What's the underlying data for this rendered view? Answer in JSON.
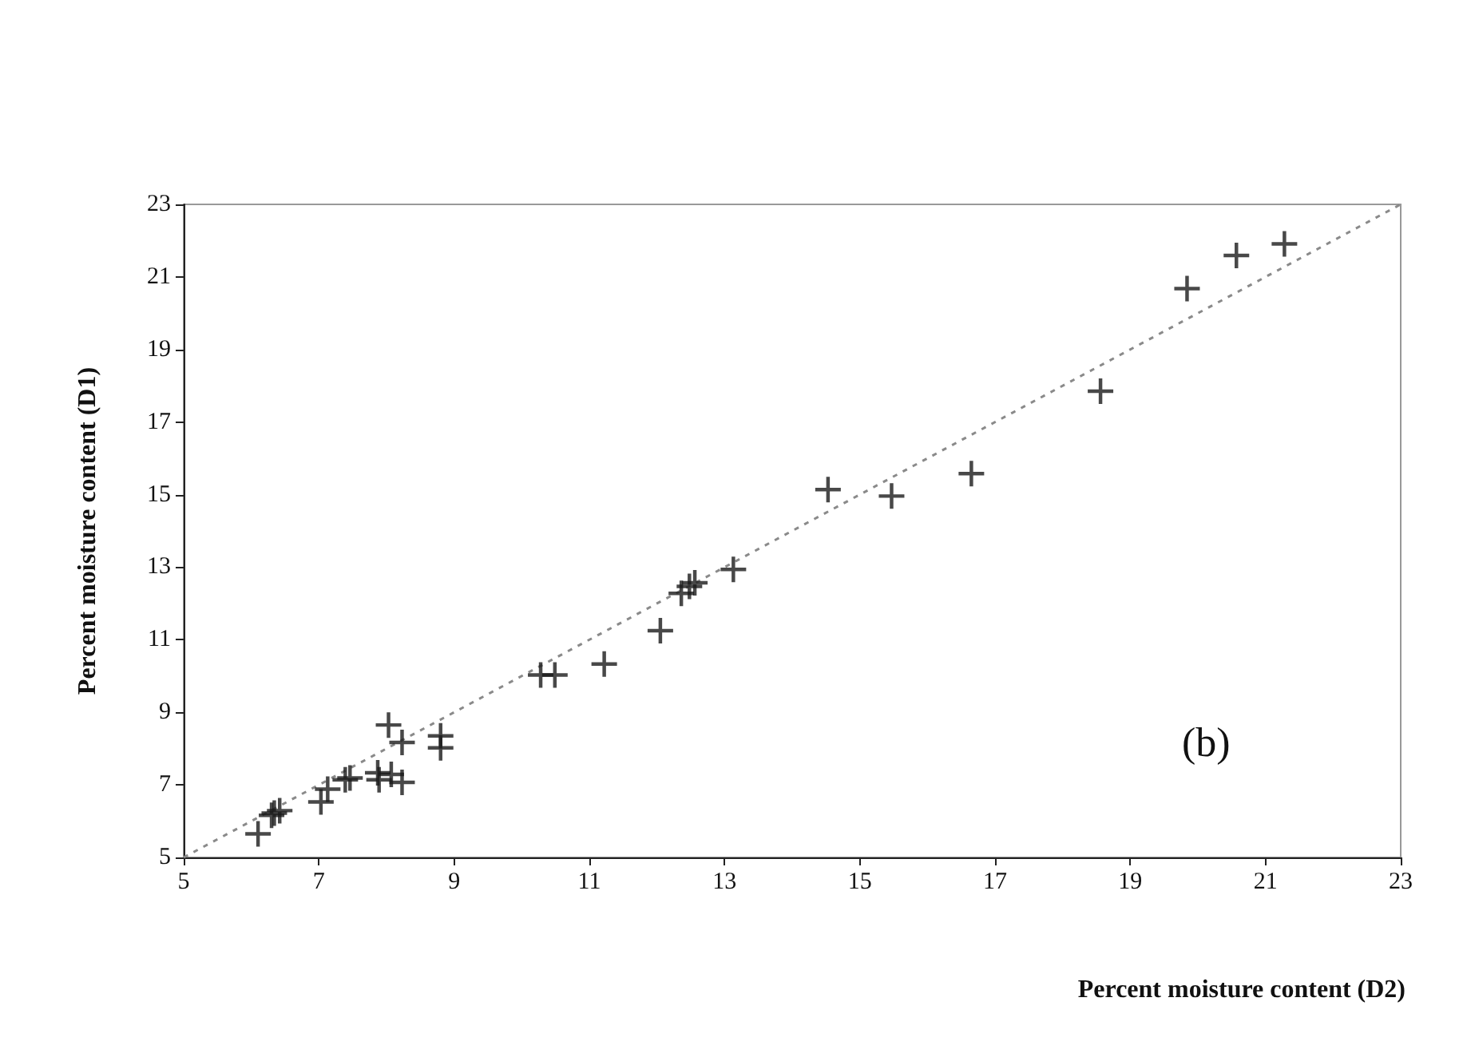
{
  "chart_data": {
    "type": "scatter",
    "xlabel": "Percent moisture content (D2)",
    "ylabel": "Percent moisture content (D1)",
    "annotations": [
      "(b)"
    ],
    "xlim": [
      5,
      23
    ],
    "ylim": [
      5,
      23
    ],
    "xticks": [
      5,
      7,
      9,
      11,
      13,
      15,
      17,
      19,
      21,
      23
    ],
    "yticks": [
      5,
      7,
      9,
      11,
      13,
      15,
      17,
      19,
      21,
      23
    ],
    "grid": false,
    "series": [
      {
        "marker": "cross",
        "color": "#1a1a1a",
        "x": [
          6.1,
          6.34,
          6.42,
          6.3,
          7.03,
          7.13,
          7.39,
          7.46,
          7.87,
          7.89,
          8.07,
          8.23,
          8.03,
          8.23,
          8.8,
          8.8,
          10.28,
          10.49,
          11.22,
          12.05,
          12.36,
          12.48,
          12.56,
          13.13,
          14.53,
          15.47,
          16.65,
          18.56,
          19.84,
          20.57,
          21.28
        ],
        "values": [
          5.65,
          6.22,
          6.29,
          6.16,
          6.53,
          6.88,
          7.14,
          7.19,
          7.33,
          7.14,
          7.29,
          7.07,
          8.65,
          8.17,
          8.35,
          8.02,
          10.03,
          10.03,
          10.33,
          11.25,
          12.28,
          12.47,
          12.57,
          12.94,
          15.14,
          14.96,
          15.58,
          17.85,
          20.68,
          21.59,
          21.91
        ]
      },
      {
        "type": "line",
        "marker": "none",
        "line_style": "dotted",
        "color": "#8a8a8a",
        "x": [
          5,
          23
        ],
        "values": [
          5,
          23
        ]
      }
    ]
  }
}
